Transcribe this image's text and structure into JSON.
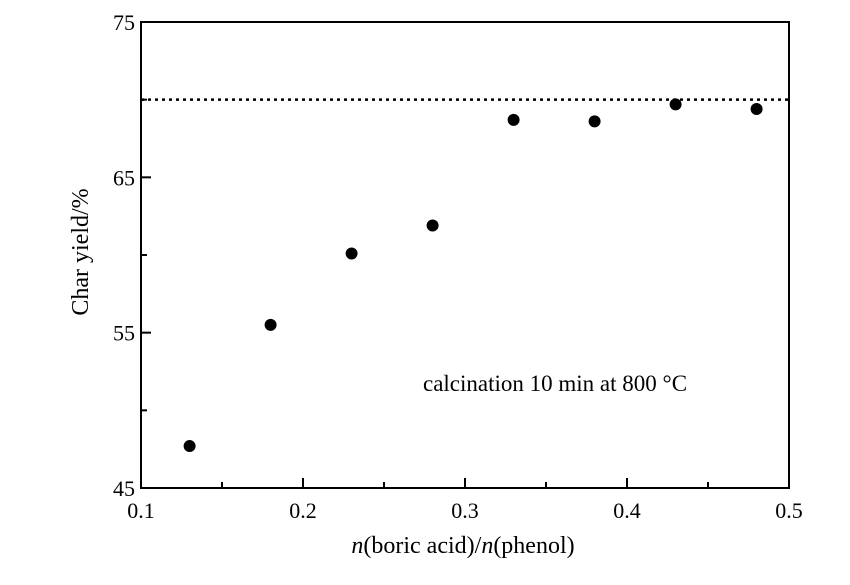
{
  "chart_data": {
    "type": "scatter",
    "xlabel": {
      "italic_pre": "n",
      "mid": "(boric acid)/",
      "italic_post": "n",
      "end": "(phenol)"
    },
    "ylabel": "Char yield/%",
    "xlim": [
      0.1,
      0.5
    ],
    "ylim": [
      45,
      75
    ],
    "x_ticks": [
      0.1,
      0.2,
      0.3,
      0.4,
      0.5
    ],
    "x_tick_labels": [
      "0.1",
      "0.2",
      "0.3",
      "0.4",
      "0.5"
    ],
    "y_ticks": [
      45,
      55,
      65,
      75
    ],
    "y_tick_labels": [
      "45",
      "55",
      "65",
      "75"
    ],
    "x_minor_ticks": [
      0.15,
      0.25,
      0.35,
      0.45
    ],
    "y_minor_ticks": [
      50,
      60,
      70
    ],
    "grid": false,
    "series": [
      {
        "marker": "circle",
        "color": "#000000",
        "x": [
          0.13,
          0.18,
          0.23,
          0.28,
          0.33,
          0.38,
          0.43,
          0.48
        ],
        "y": [
          47.7,
          55.5,
          60.1,
          61.9,
          68.7,
          68.6,
          69.7,
          69.4
        ]
      }
    ],
    "reference_line": {
      "y": 70,
      "style": "dotted",
      "color": "#000000"
    },
    "annotation": "calcination 10 min at 800 °C"
  }
}
